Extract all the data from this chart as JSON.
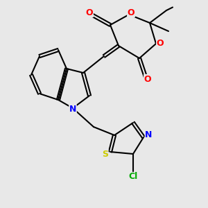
{
  "bg_color": "#e8e8e8",
  "bond_color": "#000000",
  "atom_colors": {
    "O": "#ff0000",
    "N": "#0000ff",
    "S": "#cccc00",
    "Cl": "#00aa00",
    "C": "#000000"
  },
  "figsize": [
    3.0,
    3.0
  ],
  "dpi": 100
}
